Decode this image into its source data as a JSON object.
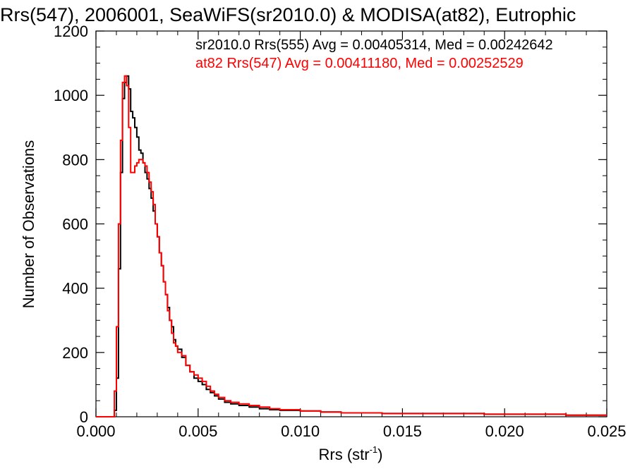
{
  "chart_data": {
    "type": "line",
    "title": "Rrs(547), 2006001, SeaWiFS(sr2010.0) & MODISA(at82), Eutrophic",
    "xlabel": "Rrs (str",
    "xlabel_sup": "-1",
    "xlabel_close": ")",
    "ylabel": "Number of Observations",
    "xlim": [
      0.0,
      0.025
    ],
    "ylim": [
      0,
      1200
    ],
    "xticks": [
      0.0,
      0.005,
      0.01,
      0.015,
      0.02,
      0.025
    ],
    "xtick_labels": [
      "0.000",
      "0.005",
      "0.010",
      "0.015",
      "0.020",
      "0.025"
    ],
    "yticks": [
      0,
      200,
      400,
      600,
      800,
      1000,
      1200
    ],
    "ytick_labels": [
      "0",
      "200",
      "400",
      "600",
      "800",
      "1000",
      "1200"
    ],
    "grid": false,
    "legend_placement": "top-right",
    "series": [
      {
        "name": "sr2010.0 Rrs(555) Avg = 0.00405314, Med = 0.00242642",
        "color": "#000000",
        "x": [
          0.0,
          0.0008,
          0.0009,
          0.001,
          0.0011,
          0.0012,
          0.0013,
          0.0014,
          0.0015,
          0.0016,
          0.0017,
          0.0018,
          0.0019,
          0.002,
          0.0021,
          0.0022,
          0.0023,
          0.0024,
          0.0025,
          0.0026,
          0.0027,
          0.0028,
          0.0029,
          0.003,
          0.0031,
          0.0032,
          0.0033,
          0.0034,
          0.0035,
          0.0036,
          0.0037,
          0.0038,
          0.0039,
          0.004,
          0.0042,
          0.0044,
          0.0046,
          0.0048,
          0.005,
          0.0052,
          0.0054,
          0.0056,
          0.0058,
          0.006,
          0.0063,
          0.0066,
          0.007,
          0.0075,
          0.008,
          0.0085,
          0.009,
          0.01,
          0.011,
          0.012,
          0.013,
          0.014,
          0.015,
          0.017,
          0.019,
          0.021,
          0.023,
          0.025
        ],
        "y": [
          0,
          0,
          20,
          120,
          460,
          760,
          990,
          1040,
          1060,
          1020,
          950,
          930,
          900,
          870,
          830,
          820,
          790,
          760,
          740,
          710,
          680,
          640,
          600,
          560,
          510,
          470,
          420,
          380,
          340,
          300,
          280,
          240,
          220,
          210,
          185,
          160,
          140,
          120,
          110,
          100,
          85,
          75,
          65,
          55,
          45,
          40,
          35,
          30,
          25,
          22,
          20,
          18,
          15,
          12,
          12,
          10,
          10,
          10,
          8,
          8,
          5,
          5
        ]
      },
      {
        "name": "at82 Rrs(547) Avg = 0.00411180, Med = 0.00252529",
        "color": "#ff0000",
        "x": [
          0.0,
          0.0008,
          0.0009,
          0.001,
          0.0011,
          0.0012,
          0.0013,
          0.0014,
          0.0015,
          0.0016,
          0.0017,
          0.0018,
          0.0019,
          0.002,
          0.0021,
          0.0022,
          0.0023,
          0.0024,
          0.0025,
          0.0026,
          0.0027,
          0.0028,
          0.0029,
          0.003,
          0.0031,
          0.0032,
          0.0033,
          0.0034,
          0.0035,
          0.0036,
          0.0037,
          0.0038,
          0.0039,
          0.004,
          0.0042,
          0.0044,
          0.0046,
          0.0048,
          0.005,
          0.0052,
          0.0054,
          0.0056,
          0.0058,
          0.006,
          0.0063,
          0.0066,
          0.007,
          0.0075,
          0.008,
          0.0085,
          0.009,
          0.01,
          0.011,
          0.012,
          0.013,
          0.014,
          0.015,
          0.017,
          0.019,
          0.021,
          0.023,
          0.025
        ],
        "y": [
          0,
          0,
          80,
          280,
          600,
          860,
          1040,
          1060,
          1030,
          900,
          760,
          760,
          780,
          790,
          800,
          800,
          790,
          780,
          760,
          730,
          700,
          660,
          600,
          560,
          510,
          470,
          420,
          380,
          330,
          300,
          260,
          230,
          220,
          200,
          190,
          160,
          140,
          130,
          120,
          110,
          95,
          80,
          70,
          60,
          50,
          45,
          40,
          35,
          30,
          25,
          22,
          18,
          15,
          12,
          12,
          10,
          10,
          10,
          8,
          8,
          5,
          5
        ]
      }
    ]
  }
}
